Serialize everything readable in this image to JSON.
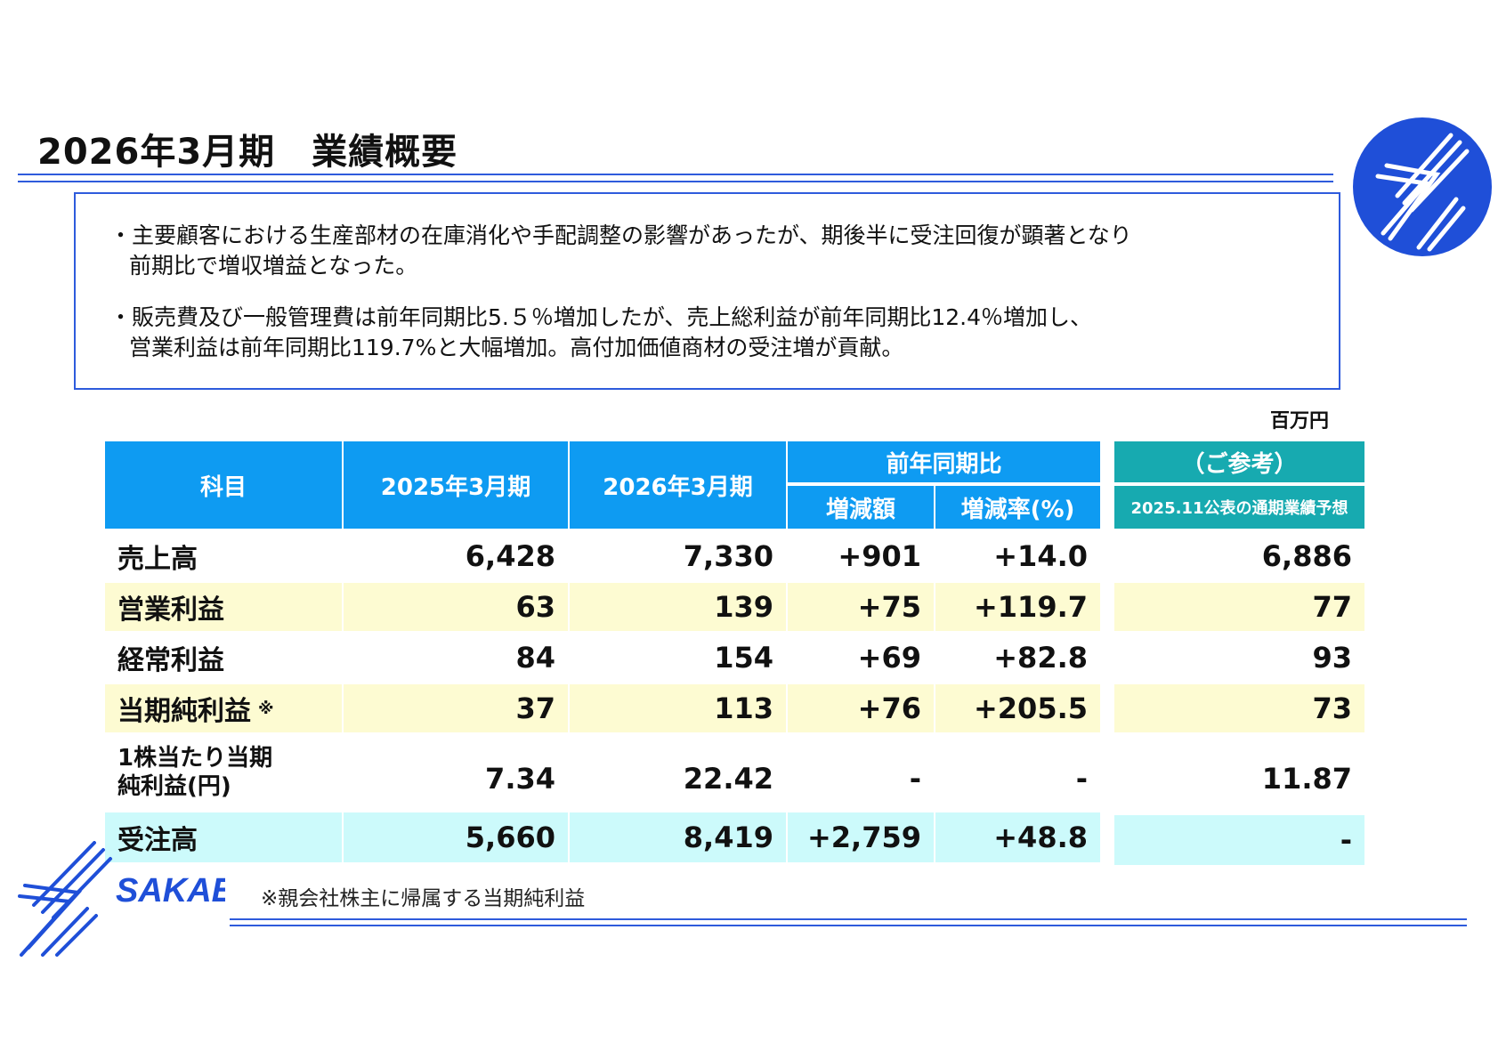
{
  "header": {
    "title": "2026年3月期　業績概要"
  },
  "summary": {
    "bullets": [
      {
        "line1": "・主要顧客における生産部材の在庫消化や手配調整の影響があったが、期後半に受注回復が顕著となり",
        "line2": "前期比で増収増益となった。"
      },
      {
        "line1": "・販売費及び一般管理費は前年同期比5.５％増加したが、売上総利益が前年同期比12.4％増加し、",
        "line2": "営業利益は前年同期比119.7%と大幅増加。高付加価値商材の受注増が貢献。"
      }
    ]
  },
  "unit": "百万円",
  "table": {
    "headers": {
      "item": "科目",
      "fy2025": "2025年3月期",
      "fy2026": "2026年3月期",
      "yoy": "前年同期比",
      "change": "増減額",
      "rate": "増減率(%)",
      "reference": "（ご参考）",
      "forecast": "2025.11公表の通期業績予想"
    },
    "rows": [
      {
        "label": "売上高",
        "fy2025": "6,428",
        "fy2026": "7,330",
        "change": "+901",
        "rate": "+14.0",
        "forecast": "6,886"
      },
      {
        "label": "営業利益",
        "fy2025": "63",
        "fy2026": "139",
        "change": "+75",
        "rate": "+119.7",
        "forecast": "77"
      },
      {
        "label": "経常利益",
        "fy2025": "84",
        "fy2026": "154",
        "change": "+69",
        "rate": "+82.8",
        "forecast": "93"
      },
      {
        "label": "当期純利益",
        "label_note": "※",
        "fy2025": "37",
        "fy2026": "113",
        "change": "+76",
        "rate": "+205.5",
        "forecast": "73"
      },
      {
        "label_line1": "1株当たり当期",
        "label_line2": "純利益(円)",
        "fy2025": "7.34",
        "fy2026": "22.42",
        "change": "-",
        "rate": "-",
        "forecast": "11.87"
      },
      {
        "label": "受注高",
        "fy2025": "5,660",
        "fy2026": "8,419",
        "change": "+2,759",
        "rate": "+48.8",
        "forecast": "-"
      }
    ]
  },
  "footnote": "※親会社株主に帰属する当期純利益",
  "logo": {
    "text": "SAKAE",
    "color": "#1f4fd8"
  }
}
